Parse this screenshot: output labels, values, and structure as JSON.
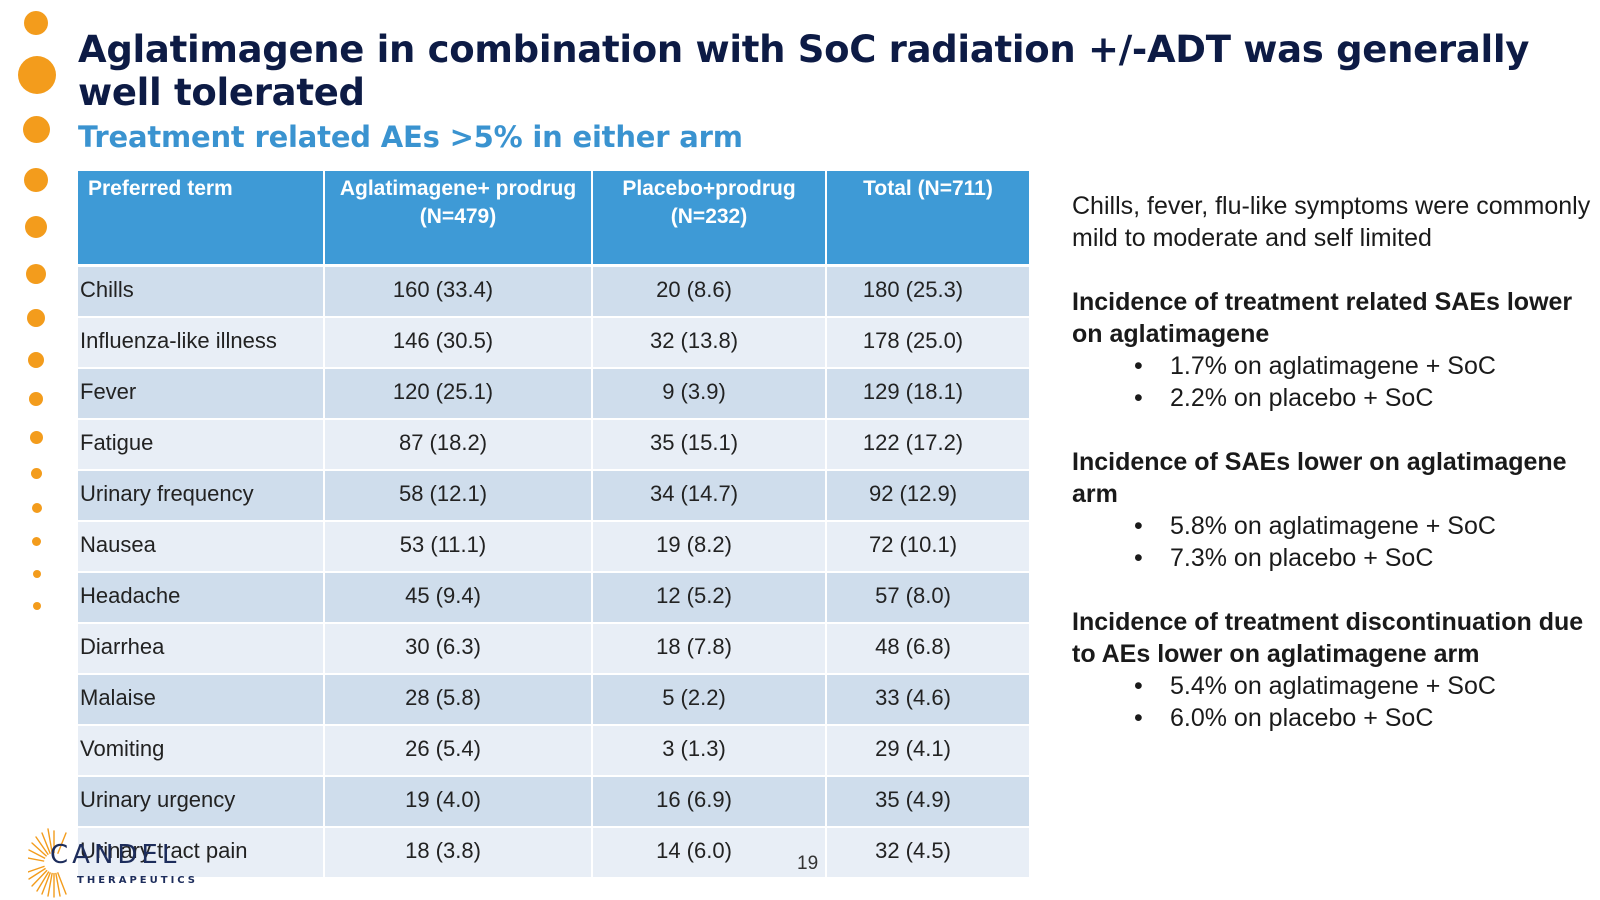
{
  "slide": {
    "title": "Aglatimagene in combination with SoC radiation +/-ADT was generally well tolerated",
    "subtitle": "Treatment related AEs >5% in either arm",
    "page_number": "19"
  },
  "table": {
    "headers": [
      "Preferred term",
      "Aglatimagene+ prodrug (N=479)",
      "Placebo+prodrug (N=232)",
      "Total (N=711)"
    ],
    "rows": [
      [
        "Chills",
        "160 (33.4)",
        "20 (8.6)",
        "180 (25.3)"
      ],
      [
        "Influenza-like illness",
        "146 (30.5)",
        "32 (13.8)",
        "178 (25.0)"
      ],
      [
        "Fever",
        "120 (25.1)",
        "9 (3.9)",
        "129 (18.1)"
      ],
      [
        "Fatigue",
        "87 (18.2)",
        "35 (15.1)",
        "122 (17.2)"
      ],
      [
        "Urinary frequency",
        "58 (12.1)",
        "34 (14.7)",
        "92 (12.9)"
      ],
      [
        "Nausea",
        "53 (11.1)",
        "19 (8.2)",
        "72 (10.1)"
      ],
      [
        "Headache",
        "45 (9.4)",
        "12 (5.2)",
        "57 (8.0)"
      ],
      [
        "Diarrhea",
        "30 (6.3)",
        "18 (7.8)",
        "48 (6.8)"
      ],
      [
        "Malaise",
        "28 (5.8)",
        "5 (2.2)",
        "33 (4.6)"
      ],
      [
        "Vomiting",
        "26 (5.4)",
        "3 (1.3)",
        "29 (4.1)"
      ],
      [
        "Urinary urgency",
        "19 (4.0)",
        "16 (6.9)",
        "35 (4.9)"
      ],
      [
        "Urinary tract pain",
        "18 (3.8)",
        "14 (6.0)",
        "32 (4.5)"
      ]
    ]
  },
  "sidebar": {
    "intro": "Chills, fever, flu-like symptoms were commonly mild to moderate and self limited",
    "sections": [
      {
        "heading": "Incidence of treatment related SAEs lower on aglatimagene",
        "bullets": [
          "1.7% on aglatimagene + SoC",
          "2.2% on placebo + SoC"
        ]
      },
      {
        "heading": "Incidence of SAEs lower on aglatimagene arm",
        "bullets": [
          "5.8% on aglatimagene + SoC",
          "7.3% on placebo + SoC"
        ]
      },
      {
        "heading": "Incidence of treatment discontinuation due to AEs lower on aglatimagene arm",
        "bullets": [
          "5.4% on aglatimagene + SoC",
          "6.0% on placebo + SoC"
        ]
      }
    ]
  },
  "logo": {
    "name": "CANDEL",
    "tagline": "THERAPEUTICS"
  },
  "colors": {
    "title": "#0D1B45",
    "subtitle": "#3A93D0",
    "header_bg": "#3E9AD6",
    "row_odd": "#CFDDEC",
    "row_even": "#E8EEF6",
    "accent_dots": "#F39C1C"
  },
  "bullet_glyph": "•"
}
